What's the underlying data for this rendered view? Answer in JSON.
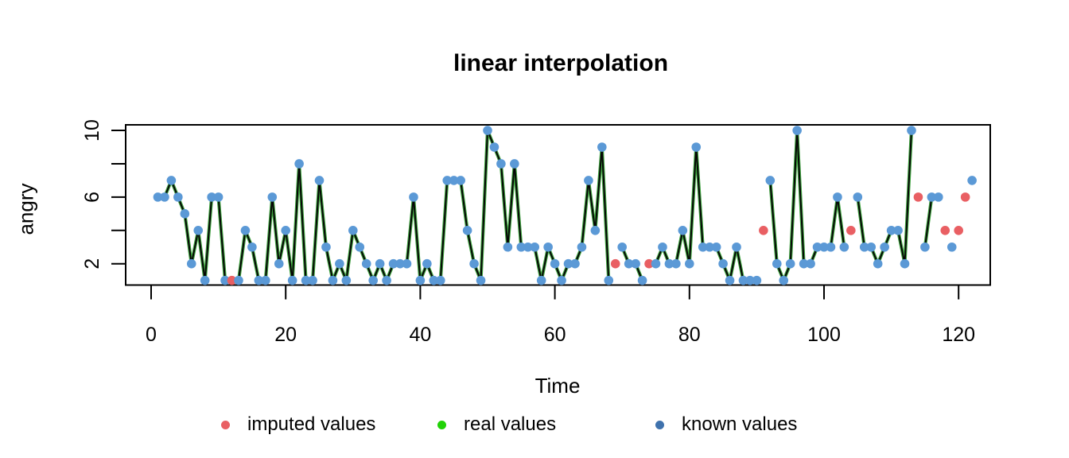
{
  "chart_data": {
    "type": "line",
    "title": "linear interpolation",
    "xlabel": "Time",
    "ylabel": "angry",
    "x_ticks": [
      0,
      20,
      40,
      60,
      80,
      100,
      120
    ],
    "y_ticks": [
      2,
      4,
      6,
      8,
      10
    ],
    "y_tick_labels": [
      2,
      6,
      10
    ],
    "xlim": [
      0,
      124
    ],
    "ylim": [
      1,
      10
    ],
    "grid": false,
    "legend_position": "bottom",
    "series": [
      {
        "name": "angry",
        "x_start": 1,
        "x_end": 122,
        "values": [
          6,
          6,
          7,
          6,
          5,
          2,
          4,
          1,
          6,
          6,
          1,
          1,
          1,
          4,
          3,
          1,
          1,
          6,
          2,
          4,
          1,
          8,
          1,
          1,
          7,
          3,
          1,
          2,
          1,
          4,
          3,
          2,
          1,
          2,
          1,
          2,
          2,
          2,
          6,
          1,
          2,
          1,
          1,
          7,
          7,
          7,
          4,
          2,
          1,
          10,
          9,
          8,
          3,
          8,
          3,
          3,
          3,
          1,
          3,
          2,
          1,
          2,
          2,
          3,
          7,
          4,
          9,
          1,
          2,
          3,
          2,
          2,
          1,
          2,
          2,
          3,
          2,
          2,
          4,
          2,
          9,
          3,
          3,
          3,
          2,
          1,
          3,
          1,
          1,
          1,
          4,
          7,
          2,
          1,
          2,
          10,
          2,
          2,
          3,
          3,
          3,
          6,
          3,
          4,
          6,
          3,
          3,
          2,
          3,
          4,
          4,
          2,
          10,
          6,
          3,
          6,
          6,
          4,
          3,
          4,
          6,
          7
        ],
        "imputed_x": [
          12,
          69,
          74,
          91,
          104,
          114,
          118,
          120,
          121
        ]
      }
    ],
    "legend": [
      {
        "label": "imputed values",
        "color": "#e95f63"
      },
      {
        "label": "real values",
        "color": "#21d207"
      },
      {
        "label": "known values",
        "color": "#3f72ad"
      }
    ]
  },
  "colors": {
    "known_point": "#5b99d6",
    "imputed_point": "#e95f63",
    "line_core": "#060606",
    "line_halo": "#3da23d",
    "axis": "#000000",
    "background": "#ffffff"
  }
}
